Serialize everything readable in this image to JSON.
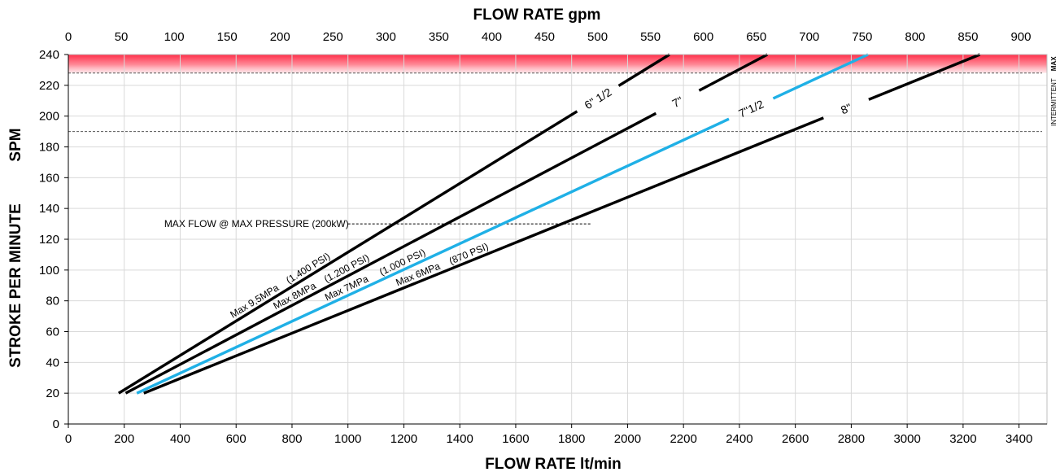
{
  "chart_data": {
    "type": "line",
    "title": "FLOW RATE  gpm",
    "xlabel": "FLOW RATE  lt/min",
    "ylabel": "STROKE PER MINUTE",
    "ylabel_unit": "SPM",
    "x_top_label": "FLOW RATE  gpm",
    "xlim": [
      0,
      3500
    ],
    "ylim": [
      0,
      240
    ],
    "x_ticks": [
      0,
      200,
      400,
      600,
      800,
      1000,
      1200,
      1400,
      1600,
      1800,
      2000,
      2200,
      2400,
      2600,
      2800,
      3000,
      3200,
      3400
    ],
    "y_ticks": [
      0,
      20,
      40,
      60,
      80,
      100,
      120,
      140,
      160,
      180,
      200,
      220,
      240
    ],
    "x_top_ticks": [
      0,
      50,
      100,
      150,
      200,
      250,
      300,
      350,
      400,
      450,
      500,
      550,
      600,
      650,
      700,
      750,
      800,
      850,
      900
    ],
    "grid": true,
    "max_band": {
      "from": 228,
      "to": 240,
      "color": "#ff3b50",
      "label": "MAX"
    },
    "intermittent_line": {
      "y": 190,
      "label": "INTERMITTENT"
    },
    "max_line": {
      "y": 228
    },
    "max_flow_line": {
      "y": 130,
      "x_start": 1000,
      "x_end": 1870,
      "label": "MAX FLOW @ MAX PRESSURE (200kW)"
    },
    "series": [
      {
        "name": "6\" 1/2",
        "color": "#000000",
        "points": [
          [
            180,
            20
          ],
          [
            2150,
            240
          ]
        ],
        "pressure_label": "Max 9,5MPa    (1.400 PSI)"
      },
      {
        "name": "7\"",
        "color": "#000000",
        "points": [
          [
            205,
            20
          ],
          [
            2500,
            240
          ]
        ],
        "pressure_label": "Max 8MPa    (1.200 PSI)"
      },
      {
        "name": "7\"1/2",
        "color": "#1fb0e6",
        "points": [
          [
            245,
            20
          ],
          [
            2860,
            240
          ]
        ],
        "pressure_label": "Max 7MPa     (1.000 PSI)"
      },
      {
        "name": "8\"",
        "color": "#000000",
        "points": [
          [
            270,
            20
          ],
          [
            3260,
            240
          ]
        ],
        "pressure_label": "Max 6MPa    (870 PSI)"
      }
    ]
  }
}
